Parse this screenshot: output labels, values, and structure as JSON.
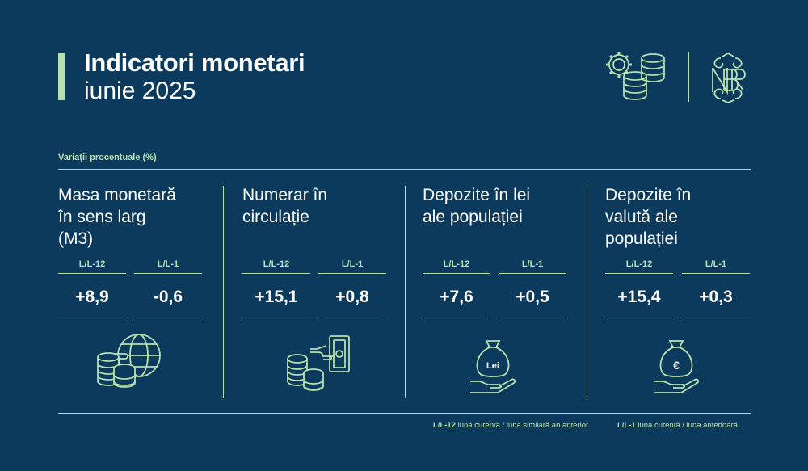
{
  "header": {
    "title": "Indicatori monetari",
    "subtitle": "iunie 2025"
  },
  "section_label": "Variații procentuale (%)",
  "columns": [
    {
      "title": [
        "Masa monetară",
        "în sens larg",
        "(M3)"
      ],
      "metrics": [
        {
          "label": "L/L-12",
          "value": "+8,9"
        },
        {
          "label": "L/L-1",
          "value": "-0,6"
        }
      ],
      "icon": "coins-globe-icon"
    },
    {
      "title": [
        "Numerar în",
        "circulație"
      ],
      "metrics": [
        {
          "label": "L/L-12",
          "value": "+15,1"
        },
        {
          "label": "L/L-1",
          "value": "+0,8"
        }
      ],
      "icon": "coins-banknote-icon"
    },
    {
      "title": [
        "Depozite în lei",
        "ale populației"
      ],
      "metrics": [
        {
          "label": "L/L-12",
          "value": "+7,6"
        },
        {
          "label": "L/L-1",
          "value": "+0,5"
        }
      ],
      "icon": "lei-money-bag-hand-icon",
      "icon_text": "Lei"
    },
    {
      "title": [
        "Depozite în",
        "valută ale",
        "populației"
      ],
      "metrics": [
        {
          "label": "L/L-12",
          "value": "+15,4"
        },
        {
          "label": "L/L-1",
          "value": "+0,3"
        }
      ],
      "icon": "euro-money-bag-hand-icon",
      "icon_text": "€"
    }
  ],
  "footer": {
    "items": [
      {
        "abbr": "L/L-12",
        "text": " luna curentă / luna similară an anterior"
      },
      {
        "abbr": "L/L-1",
        "text": " luna curentă / luna anterioară"
      }
    ]
  },
  "logo": {
    "name": "bnr-monogram-logo",
    "icon": "gears-database-icon"
  },
  "colors": {
    "background": "#0b3a5c",
    "accent": "#b7e0b0",
    "text": "#ffffff"
  }
}
